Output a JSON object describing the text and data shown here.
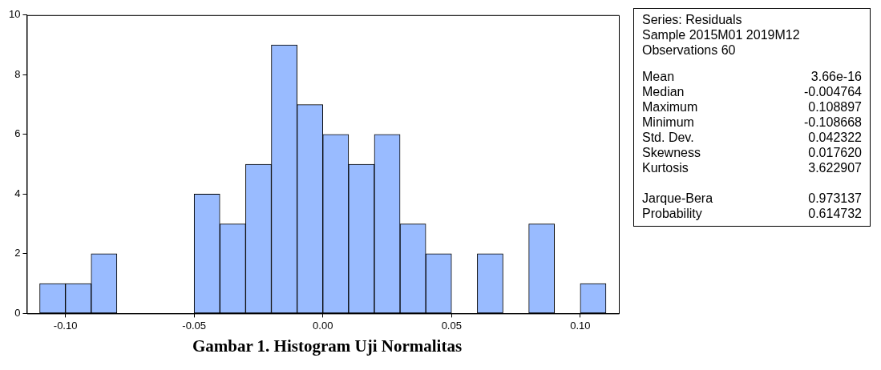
{
  "chart_data": {
    "type": "histogram",
    "title": "Gambar 1. Histogram Uji Normalitas",
    "bins": [
      -0.11,
      -0.1,
      -0.09,
      -0.08,
      -0.07,
      -0.06,
      -0.05,
      -0.04,
      -0.03,
      -0.02,
      -0.01,
      0,
      0.01,
      0.02,
      0.03,
      0.04,
      0.05,
      0.06,
      0.07,
      0.08,
      0.09,
      0.1,
      0.11
    ],
    "values": [
      1,
      1,
      2,
      0,
      0,
      0,
      4,
      3,
      5,
      9,
      7,
      6,
      5,
      6,
      3,
      2,
      0,
      2,
      0,
      3,
      0,
      1
    ],
    "color": "#99bbff",
    "xlim": [
      -0.115,
      0.115
    ],
    "xticks": [
      {
        "value": -0.1,
        "label": "-0.10"
      },
      {
        "value": -0.05,
        "label": "-0.05"
      },
      {
        "value": 0,
        "label": "0.00"
      },
      {
        "value": 0.05,
        "label": "0.05"
      },
      {
        "value": 0.1,
        "label": "0.10"
      }
    ],
    "ylim": [
      0,
      10
    ],
    "yticks": [
      0,
      2,
      4,
      6,
      8,
      10
    ],
    "grid": false,
    "legend": false,
    "annotations": [
      "Series: Residuals",
      "Sample 2015M01 2019M12",
      "Observations 60",
      "Mean",
      "3.66e-16",
      "Median",
      "-0.004764",
      "Maximum",
      "0.108897",
      "Minimum",
      "-0.108668",
      "Std. Dev.",
      "0.042322",
      "Skewness",
      "0.017620",
      "Kurtosis",
      "3.622907",
      "Jarque-Bera",
      "0.973137",
      "Probability",
      "0.614732"
    ]
  }
}
